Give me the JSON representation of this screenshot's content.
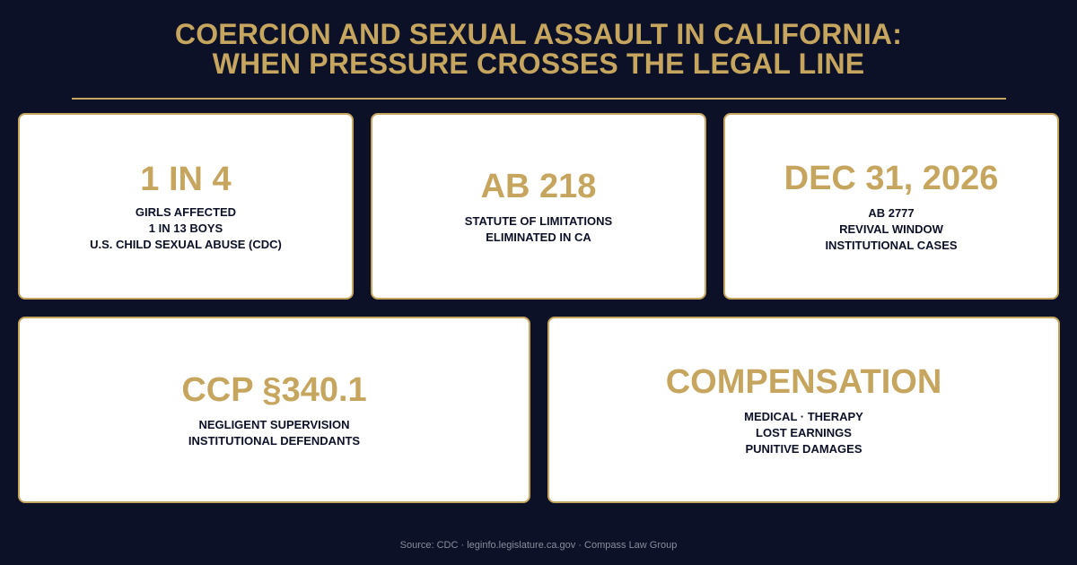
{
  "header": {
    "title_line1": "COERCION AND SEXUAL ASSAULT IN CALIFORNIA:",
    "title_line2": "WHEN PRESSURE CROSSES THE LEGAL LINE"
  },
  "cards": [
    {
      "value": "1 IN 4",
      "lines": [
        "GIRLS AFFECTED",
        "1 IN 13 BOYS",
        "U.S. CHILD SEXUAL ABUSE (CDC)"
      ]
    },
    {
      "value": "AB 218",
      "lines": [
        "STATUTE OF LIMITATIONS",
        "ELIMINATED IN CA"
      ]
    },
    {
      "value": "DEC 31, 2026",
      "lines": [
        "AB 2777",
        "REVIVAL WINDOW",
        "INSTITUTIONAL CASES"
      ]
    },
    {
      "value": "CCP §340.1",
      "lines": [
        "NEGLIGENT SUPERVISION",
        "INSTITUTIONAL DEFENDANTS"
      ]
    },
    {
      "value": "COMPENSATION",
      "lines": [
        "MEDICAL · THERAPY",
        "LOST EARNINGS",
        "PUNITIVE DAMAGES"
      ]
    }
  ],
  "footer": {
    "source": "Source: CDC · leginfo.legislature.ca.gov · Compass Law Group"
  },
  "colors": {
    "background": "#0c1128",
    "accent_gold": "#c6a65f",
    "card_background": "#ffffff",
    "card_text": "#0c1128",
    "source_text": "#8a8d9a"
  }
}
